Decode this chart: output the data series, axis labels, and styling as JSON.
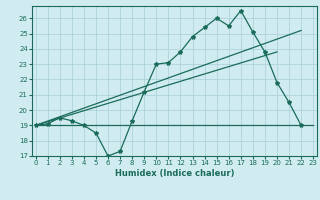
{
  "line1_x": [
    0,
    1,
    2,
    3,
    4,
    5,
    6,
    7,
    8,
    9,
    10,
    11,
    12,
    13,
    14,
    15,
    16,
    17,
    18,
    19,
    20,
    21,
    22,
    23
  ],
  "line1_y": [
    19,
    19.1,
    19.5,
    19.3,
    19.0,
    18.5,
    17.0,
    17.3,
    19.3,
    21.2,
    23.0,
    23.1,
    23.8,
    24.8,
    25.4,
    26.0,
    25.5,
    26.5,
    25.1,
    23.8,
    21.8,
    20.5,
    19.0,
    null
  ],
  "line2_x": [
    0,
    23
  ],
  "line2_y": [
    19,
    19
  ],
  "line3_x": [
    0,
    22
  ],
  "line3_y": [
    19,
    25.2
  ],
  "line4_x": [
    0,
    20
  ],
  "line4_y": [
    19,
    23.8
  ],
  "xlim": [
    -0.3,
    23.3
  ],
  "ylim": [
    17,
    26.8
  ],
  "yticks": [
    17,
    18,
    19,
    20,
    21,
    22,
    23,
    24,
    25,
    26
  ],
  "xticks": [
    0,
    1,
    2,
    3,
    4,
    5,
    6,
    7,
    8,
    9,
    10,
    11,
    12,
    13,
    14,
    15,
    16,
    17,
    18,
    19,
    20,
    21,
    22,
    23
  ],
  "xlabel": "Humidex (Indice chaleur)",
  "color": "#1a6b5a",
  "bg_color": "#d0ecf0",
  "grid_color": "#a8cfd8"
}
